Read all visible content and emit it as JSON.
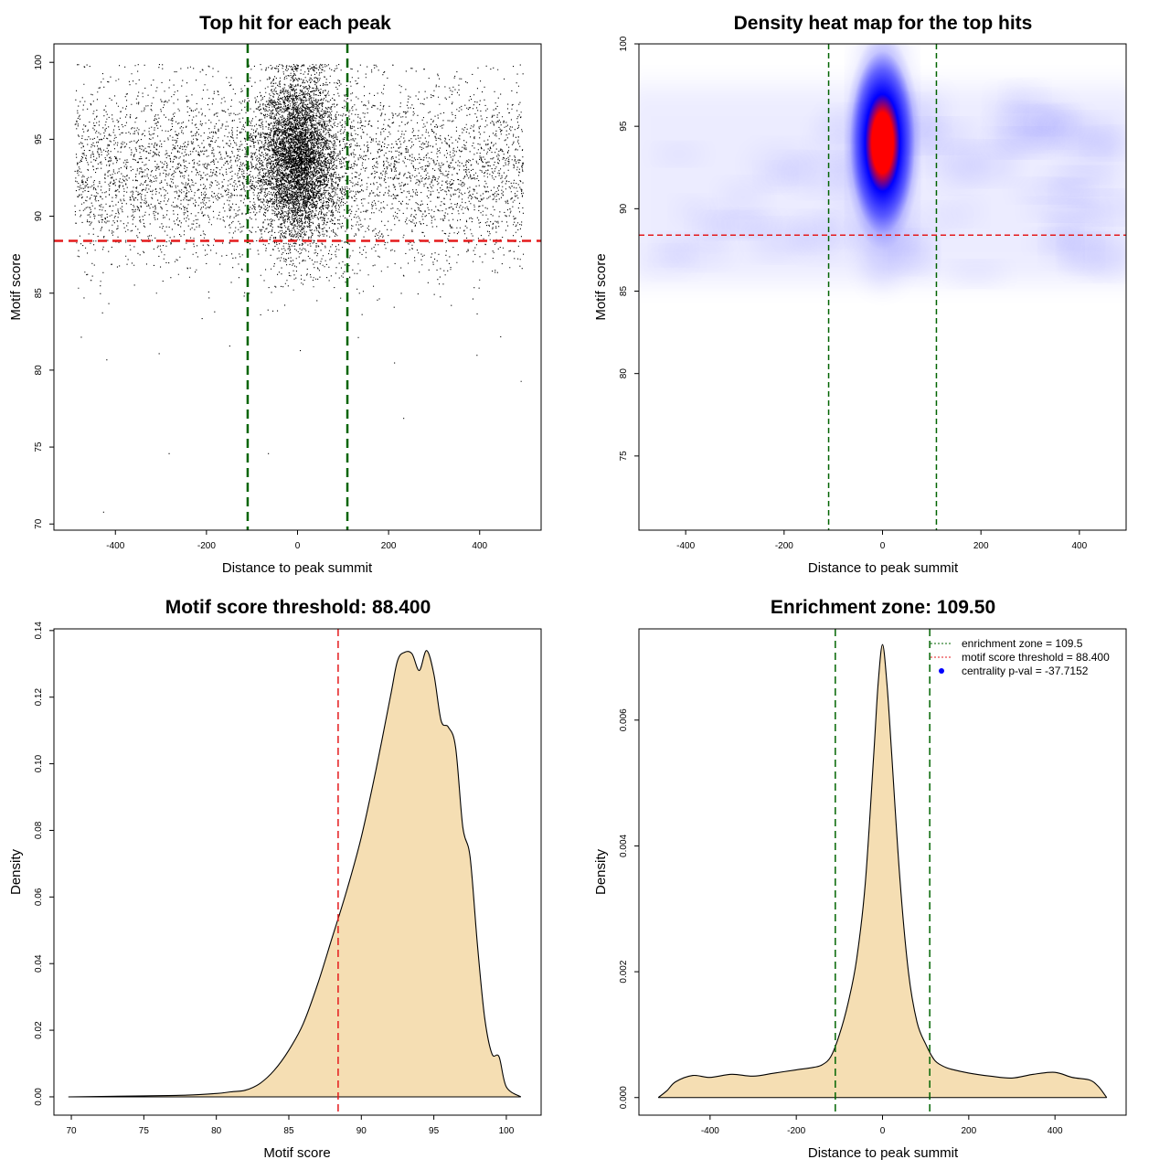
{
  "chart_data": [
    {
      "type": "scatter",
      "title": "Top hit for each peak",
      "xlabel": "Distance to peak summit",
      "ylabel": "Motif score",
      "xlim": [
        -535,
        535
      ],
      "ylim": [
        69.6,
        101.2
      ],
      "x_ticks": [
        -400,
        -200,
        0,
        200,
        400
      ],
      "y_ticks": [
        70,
        75,
        80,
        85,
        90,
        95,
        100
      ],
      "point_color": "#000000",
      "distribution": {
        "background": {
          "x_range": [
            -490,
            495
          ],
          "y_mean": 93.0,
          "y_sd": 3.0,
          "count": 5200
        },
        "central": {
          "x_mean": 0,
          "x_sd": 42,
          "y_mean": 93.8,
          "y_sd": 2.7,
          "count": 5600
        },
        "outliers": [
          {
            "x": -427,
            "y": 70.8
          },
          {
            "x": -283,
            "y": 74.6
          },
          {
            "x": -65,
            "y": 74.6
          },
          {
            "x": 232,
            "y": 76.9
          },
          {
            "x": 490,
            "y": 79.3
          },
          {
            "x": 393,
            "y": 81.0
          },
          {
            "x": -420,
            "y": 80.7
          },
          {
            "x": 5,
            "y": 81.3
          },
          {
            "x": -150,
            "y": 81.6
          },
          {
            "x": 212,
            "y": 80.5
          },
          {
            "x": 445,
            "y": 82.2
          },
          {
            "x": -305,
            "y": 81.1
          }
        ]
      },
      "vlines": {
        "values": [
          -109.5,
          109.5
        ],
        "color": "#006400"
      },
      "hline": {
        "value": 88.4,
        "color": "#e41a1c"
      }
    },
    {
      "type": "heatmap",
      "title": "Density heat map for the top hits",
      "xlabel": "Distance to peak summit",
      "ylabel": "Motif score",
      "xlim": [
        -495,
        495
      ],
      "ylim": [
        70.5,
        100
      ],
      "x_ticks": [
        -400,
        -200,
        0,
        200,
        400
      ],
      "y_ticks": [
        75,
        80,
        85,
        90,
        95,
        100
      ],
      "colors": {
        "low": "#ffffff",
        "mid": "#0000ff",
        "high": "#ff0000"
      },
      "density_peak": {
        "x": 0,
        "y": 94
      },
      "vlines": {
        "values": [
          -109.5,
          109.5
        ],
        "color": "#006400"
      },
      "hline": {
        "value": 88.4,
        "color": "#e41a1c"
      }
    },
    {
      "type": "area",
      "title": "Motif score threshold: 88.400",
      "xlabel": "Motif score",
      "ylabel": "Density",
      "xlim": [
        68.8,
        102.4
      ],
      "ylim": [
        -0.0055,
        0.1405
      ],
      "x_ticks": [
        70,
        75,
        80,
        85,
        90,
        95,
        100
      ],
      "y_ticks": [
        0.0,
        0.02,
        0.04,
        0.06,
        0.08,
        0.1,
        0.12,
        0.14
      ],
      "y_tick_labels": [
        "0.00",
        "0.02",
        "0.04",
        "0.06",
        "0.08",
        "0.10",
        "0.12",
        "0.14"
      ],
      "fill_color": "#f5deb3",
      "x": [
        69.8,
        75,
        78,
        80,
        81,
        82,
        83,
        84,
        85,
        86,
        87,
        88,
        89,
        90,
        91,
        92,
        92.5,
        93,
        93.5,
        94,
        94.5,
        95,
        95.5,
        96,
        96.5,
        97,
        97.5,
        98,
        98.5,
        99,
        99.5,
        100,
        101
      ],
      "y": [
        0,
        0.0003,
        0.0005,
        0.001,
        0.0015,
        0.002,
        0.004,
        0.008,
        0.014,
        0.022,
        0.034,
        0.048,
        0.062,
        0.078,
        0.098,
        0.12,
        0.131,
        0.1335,
        0.133,
        0.128,
        0.134,
        0.127,
        0.113,
        0.111,
        0.105,
        0.081,
        0.072,
        0.046,
        0.024,
        0.013,
        0.012,
        0.003,
        0
      ],
      "vline": {
        "value": 88.4,
        "color": "#e41a1c"
      }
    },
    {
      "type": "area",
      "title": "Enrichment zone: 109.50",
      "xlabel": "Distance to peak summit",
      "ylabel": "Density",
      "xlim": [
        -565,
        565
      ],
      "ylim": [
        -0.00028,
        0.00745
      ],
      "x_ticks": [
        -400,
        -200,
        0,
        200,
        400
      ],
      "y_ticks": [
        0.0,
        0.002,
        0.004,
        0.006
      ],
      "y_tick_labels": [
        "0.000",
        "0.002",
        "0.004",
        "0.006"
      ],
      "fill_color": "#f5deb3",
      "x": [
        -520,
        -500,
        -480,
        -440,
        -400,
        -350,
        -300,
        -250,
        -200,
        -160,
        -140,
        -120,
        -100,
        -80,
        -60,
        -40,
        -20,
        -10,
        0,
        10,
        20,
        40,
        60,
        80,
        100,
        120,
        140,
        160,
        200,
        250,
        300,
        350,
        400,
        440,
        480,
        500,
        520
      ],
      "y": [
        0,
        0.00011,
        0.00025,
        0.00035,
        0.00032,
        0.00037,
        0.00034,
        0.00039,
        0.00044,
        0.00048,
        0.00052,
        0.00065,
        0.001,
        0.0015,
        0.0022,
        0.0034,
        0.0055,
        0.0066,
        0.0072,
        0.0066,
        0.0056,
        0.0035,
        0.002,
        0.0012,
        0.00085,
        0.0006,
        0.0005,
        0.00045,
        0.00039,
        0.00034,
        0.00031,
        0.00037,
        0.0004,
        0.00032,
        0.00028,
        0.00018,
        0
      ],
      "vlines": {
        "values": [
          -109.5,
          109.5
        ],
        "color": "#006400"
      },
      "legend": {
        "position": "top-right",
        "entries": [
          {
            "label": "enrichment zone = 109.5",
            "color": "#006400",
            "style": "dotted-line"
          },
          {
            "label": "motif score threshold = 88.400",
            "color": "#e41a1c",
            "style": "dotted-line"
          },
          {
            "label": "centrality p-val = -37.7152",
            "color": "#0000ff",
            "style": "point"
          }
        ]
      }
    }
  ]
}
